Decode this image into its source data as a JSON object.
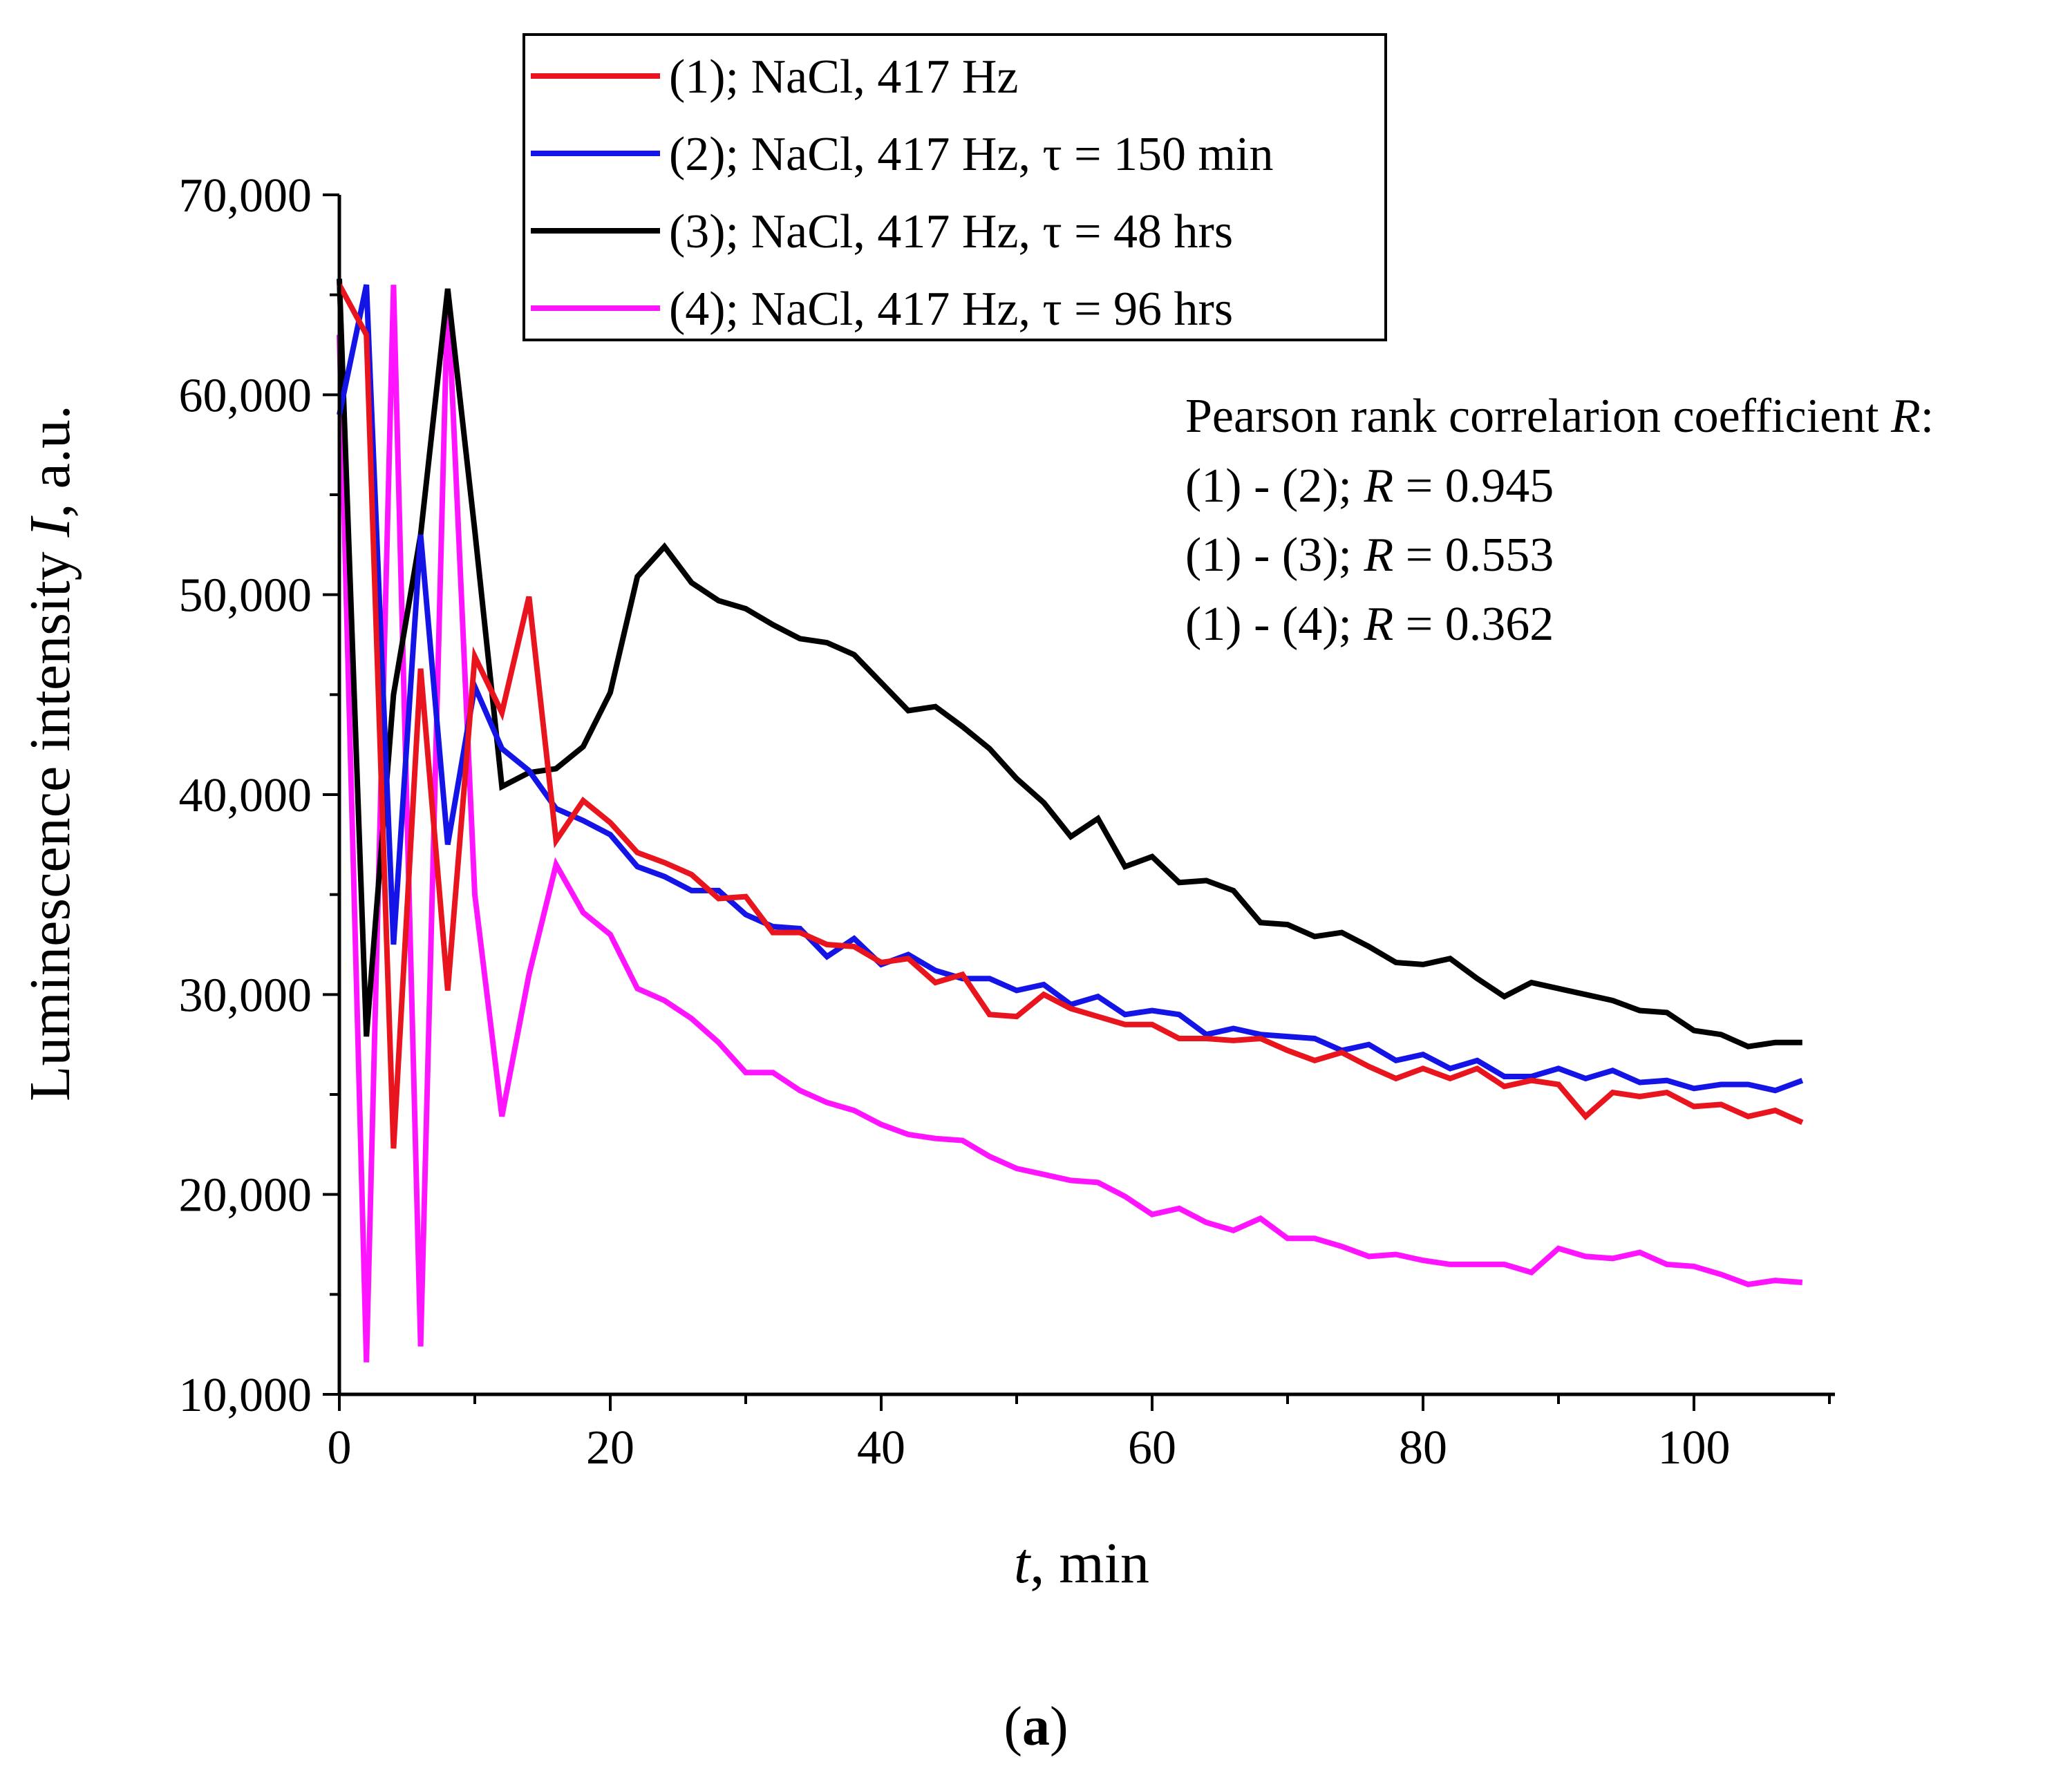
{
  "chart_data": {
    "type": "line",
    "title": "",
    "xlabel_italic": "t",
    "xlabel_rest": ", min",
    "ylabel_prefix": "Luminescence intensity ",
    "ylabel_italic": "I",
    "ylabel_suffix": ", a.u.",
    "xlim": [
      0,
      110
    ],
    "ylim": [
      10000,
      70000
    ],
    "xticks": [
      0,
      20,
      40,
      60,
      80,
      100
    ],
    "xtick_labels": [
      "0",
      "20",
      "40",
      "60",
      "80",
      "100"
    ],
    "yticks": [
      10000,
      20000,
      30000,
      40000,
      50000,
      60000,
      70000
    ],
    "ytick_labels": [
      "10,000",
      "20,000",
      "30,000",
      "40,000",
      "50,000",
      "60,000",
      "70,000"
    ],
    "legend_position": "top-center",
    "x": [
      0,
      2,
      4,
      6,
      8,
      10,
      12,
      14,
      16,
      18,
      20,
      22,
      24,
      26,
      28,
      30,
      32,
      34,
      36,
      38,
      40,
      42,
      44,
      46,
      48,
      50,
      52,
      54,
      56,
      58,
      60,
      62,
      64,
      66,
      68,
      70,
      72,
      74,
      76,
      78,
      80,
      82,
      84,
      86,
      88,
      90,
      92,
      94,
      96,
      98,
      100,
      102,
      104,
      106,
      108
    ],
    "series": [
      {
        "name": "(1); NaCl, 417 Hz",
        "color": "#e8141e",
        "values": [
          65500,
          63000,
          22300,
          46300,
          30200,
          46900,
          44100,
          49900,
          37700,
          39700,
          38600,
          37100,
          36600,
          36000,
          34800,
          34900,
          33100,
          33100,
          32500,
          32400,
          31600,
          31800,
          30600,
          31000,
          29000,
          28900,
          30000,
          29300,
          28900,
          28500,
          28500,
          27800,
          27800,
          27700,
          27800,
          27200,
          26700,
          27100,
          26400,
          25800,
          26300,
          25800,
          26300,
          25400,
          25700,
          25500,
          23900,
          25100,
          24900,
          25100,
          24400,
          24500,
          23900,
          24200,
          23600
        ]
      },
      {
        "name": "(2); NaCl, 417 Hz, τ = 150 min",
        "color": "#1414e6",
        "values": [
          59000,
          65500,
          32500,
          53000,
          37500,
          45400,
          42300,
          41200,
          39300,
          38700,
          38000,
          36400,
          35900,
          35200,
          35200,
          34000,
          33400,
          33300,
          31900,
          32800,
          31500,
          32000,
          31200,
          30800,
          30800,
          30200,
          30500,
          29500,
          29900,
          29000,
          29200,
          29000,
          28000,
          28300,
          28000,
          27900,
          27800,
          27200,
          27500,
          26700,
          27000,
          26300,
          26700,
          25900,
          25900,
          26300,
          25800,
          26200,
          25600,
          25700,
          25300,
          25500,
          25500,
          25200,
          25700
        ]
      },
      {
        "name": "(3); NaCl, 417 Hz, τ = 48 hrs",
        "color": "#000000",
        "values": [
          65800,
          27900,
          45000,
          53000,
          65300,
          53200,
          40400,
          41100,
          41300,
          42400,
          45100,
          50900,
          52400,
          50600,
          49700,
          49300,
          48500,
          47800,
          47600,
          47000,
          45600,
          44200,
          44400,
          43400,
          42300,
          40800,
          39600,
          37900,
          38800,
          36400,
          36900,
          35600,
          35700,
          35200,
          33600,
          33500,
          32900,
          33100,
          32400,
          31600,
          31500,
          31800,
          30800,
          29900,
          30600,
          30300,
          30000,
          29700,
          29200,
          29100,
          28200,
          28000,
          27400,
          27600,
          27600
        ]
      },
      {
        "name": "(4); NaCl, 417 Hz, τ = 96 hrs",
        "color": "#ff14ff",
        "values": [
          63000,
          11600,
          65500,
          12400,
          65200,
          35000,
          23900,
          31000,
          36500,
          34100,
          33000,
          30300,
          29700,
          28800,
          27600,
          26100,
          26100,
          25200,
          24600,
          24200,
          23500,
          23000,
          22800,
          22700,
          21900,
          21300,
          21000,
          20700,
          20600,
          19900,
          19000,
          19300,
          18600,
          18200,
          18800,
          17800,
          17800,
          17400,
          16900,
          17000,
          16700,
          16500,
          16500,
          16500,
          16100,
          17300,
          16900,
          16800,
          17100,
          16500,
          16400,
          16000,
          15500,
          15700,
          15600
        ]
      }
    ]
  },
  "annotation": {
    "line1_prefix": "Pearson rank correlarion coefficient ",
    "line1_italic": "R",
    "line1_suffix": ":",
    "pairs": [
      {
        "label": "(1) - (2); ",
        "r_symbol": "R",
        "value": " = 0.945"
      },
      {
        "label": "(1) - (3); ",
        "r_symbol": "R",
        "value": " = 0.553"
      },
      {
        "label": "(1) - (4); ",
        "r_symbol": "R",
        "value": " = 0.362"
      }
    ]
  },
  "panel_label": {
    "open": "(",
    "letter": "a",
    "close": ")"
  }
}
